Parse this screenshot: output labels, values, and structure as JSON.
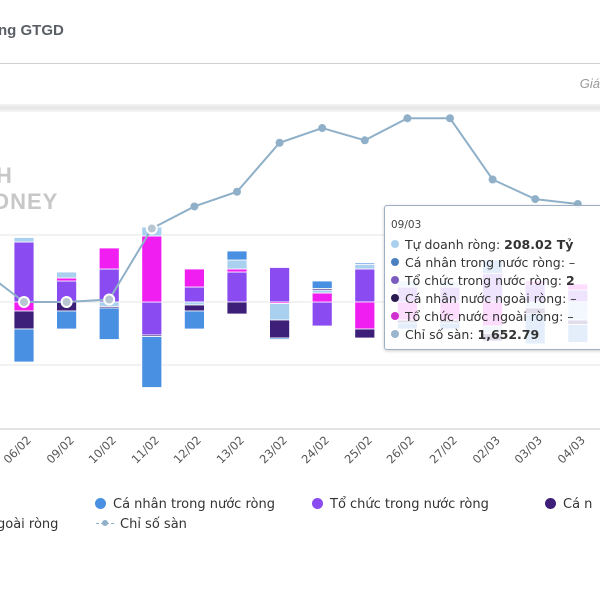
{
  "header": {
    "title": "ng GTGD",
    "right_label": "Giá"
  },
  "watermark": {
    "line1": "H",
    "line2": "ONEY"
  },
  "colors": {
    "tu_doanh": "#a9d0ee",
    "ca_nhan_trong_nuoc": "#4a90e2",
    "to_chuc_trong_nuoc": "#8a4cf0",
    "ca_nhan_nuoc_ngoai": "#3d1f7a",
    "to_chuc_nuoc_ngoai": "#f01ef0",
    "index_line": "#8fb0c8"
  },
  "tooltip": {
    "date": "09/03",
    "rows": [
      {
        "label": "Tự doanh ròng: ",
        "value": "208.02 Tỷ",
        "color": "#a9d0ee"
      },
      {
        "label": "Cá nhân trong nước ròng: ",
        "value": "–",
        "color": "#4a7fc0"
      },
      {
        "label": "Tổ chức trong nước ròng: ",
        "value": "2",
        "color": "#7b5cbf"
      },
      {
        "label": "Cá nhân nước ngoài ròng: ",
        "value": "–",
        "color": "#2a1a50"
      },
      {
        "label": "Tổ chức nước ngoài ròng: ",
        "value": "–",
        "color": "#d030d0"
      },
      {
        "label": "Chỉ số sàn: ",
        "value": "1,652.79",
        "color": "#9ab5cc"
      }
    ]
  },
  "legend": {
    "items": [
      {
        "label": "Cá nhân trong nước ròng",
        "color": "#4a90e2",
        "type": "dot"
      },
      {
        "label": "Tổ chức trong nước ròng",
        "color": "#8a4cf0",
        "type": "dot"
      },
      {
        "label": "Cá n",
        "color": "#3d1f7a",
        "type": "dot"
      },
      {
        "label": "goài ròng",
        "color": "",
        "type": "text"
      },
      {
        "label": "Chỉ số sàn",
        "color": "#8fb0c8",
        "type": "line"
      }
    ]
  },
  "chart_data": {
    "type": "bar",
    "stacked": true,
    "title": "",
    "xlabel": "",
    "ylabel": "",
    "categories": [
      "06/02",
      "09/02",
      "10/02",
      "11/02",
      "12/02",
      "13/02",
      "23/02",
      "24/02",
      "25/02",
      "26/02",
      "27/02",
      "02/03",
      "03/03",
      "04/03"
    ],
    "series": [
      {
        "name": "Tự doanh ròng",
        "values": [
          15,
          20,
          -15,
          30,
          -10,
          30,
          -55,
          10,
          15,
          20,
          20,
          -25,
          -20,
          -60
        ]
      },
      {
        "name": "Cá nhân trong nước ròng",
        "values": [
          -110,
          -60,
          -105,
          -170,
          -60,
          30,
          -5,
          25,
          5,
          -20,
          -20,
          45,
          -100,
          -60
        ]
      },
      {
        "name": "Tổ chức trong nước ròng",
        "values": [
          200,
          70,
          110,
          -110,
          50,
          100,
          115,
          -80,
          110,
          50,
          50,
          95,
          60,
          40
        ]
      },
      {
        "name": "Cá nhân nước ngoài ròng",
        "values": [
          -60,
          -30,
          -5,
          -5,
          -20,
          -40,
          -60,
          5,
          -30,
          -10,
          -10,
          -25,
          -20,
          -15
        ]
      },
      {
        "name": "Tổ chức nước ngoài ròng",
        "values": [
          -30,
          10,
          70,
          220,
          60,
          10,
          -5,
          30,
          -90,
          -60,
          -60,
          -80,
          10,
          20
        ]
      }
    ],
    "line": {
      "name": "Chỉ số sàn",
      "values": [
        1610,
        1610,
        1611,
        1640,
        1649,
        1655,
        1675,
        1681,
        1676,
        1685,
        1685,
        1660,
        1652,
        1650
      ]
    },
    "legend_position": "bottom",
    "grid": true
  }
}
